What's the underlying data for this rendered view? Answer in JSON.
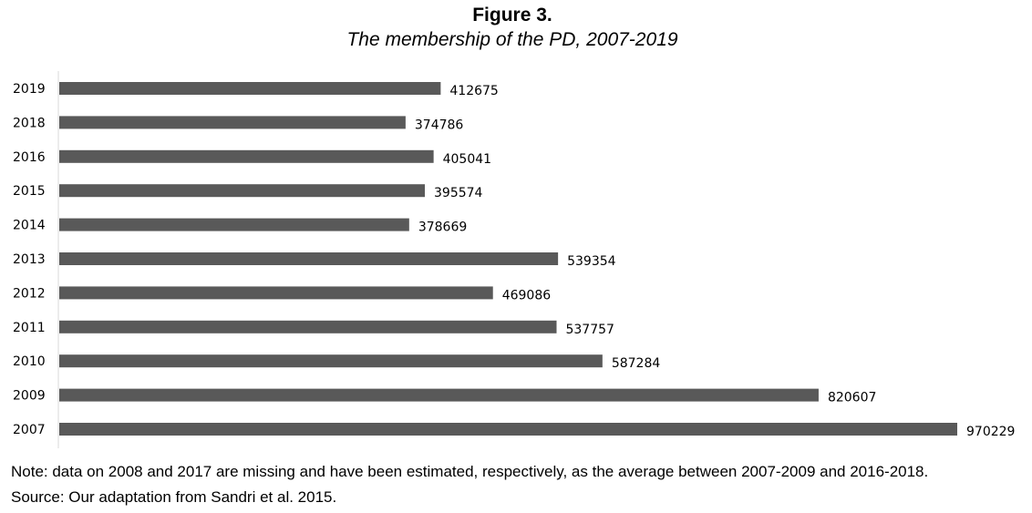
{
  "figure": {
    "label": "Figure 3.",
    "title": "The membership of the PD, 2007-2019",
    "note": "Note: data on 2008 and 2017 are missing and have been estimated, respectively, as the average between 2007-2009 and 2016-2018.",
    "source": "Source: Our adaptation from Sandri et al. 2015."
  },
  "chart_data": {
    "type": "bar",
    "orientation": "horizontal",
    "title": "The membership of the PD, 2007-2019",
    "xlabel": "",
    "ylabel": "",
    "categories": [
      "2019",
      "2018",
      "2016",
      "2015",
      "2014",
      "2013",
      "2012",
      "2011",
      "2010",
      "2009",
      "2007"
    ],
    "values": [
      412675,
      374786,
      405041,
      395574,
      378669,
      539354,
      469086,
      537757,
      587284,
      820607,
      970229
    ],
    "xlim": [
      0,
      1000000
    ],
    "grid": false,
    "legend": "none",
    "data_labels": true,
    "bar_color": "#595959",
    "axis_color": "#d9d9d9"
  }
}
